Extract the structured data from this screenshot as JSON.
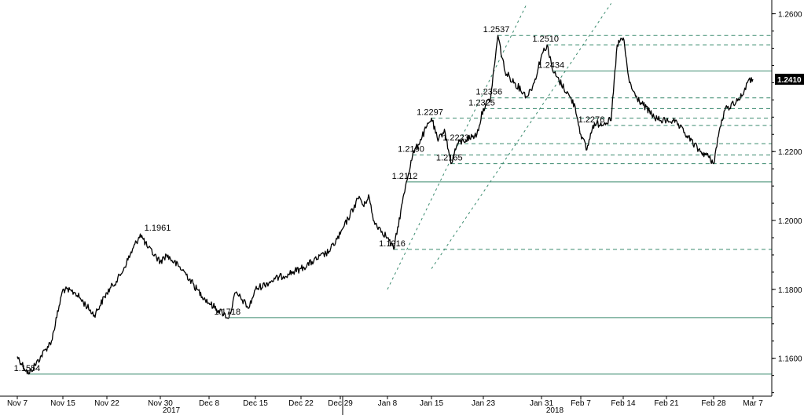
{
  "chart_data": {
    "type": "line",
    "title": "",
    "xlabel": "",
    "ylabel": "",
    "x_tick_labels": [
      "Nov 7",
      "Nov 15",
      "Nov 22",
      "Nov 30",
      "Dec 8",
      "Dec 15",
      "Dec 22",
      "Dec 29",
      "Jan 8",
      "Jan 15",
      "Jan 23",
      "Jan 31",
      "Feb 7",
      "Feb 14",
      "Feb 21",
      "Feb 28",
      "Mar 7"
    ],
    "year_labels": [
      "2017",
      "2018"
    ],
    "y_tick_labels": [
      "1.1600",
      "1.1800",
      "1.2000",
      "1.2200",
      "1.2600"
    ],
    "y_ticks": [
      1.16,
      1.18,
      1.2,
      1.22,
      1.26
    ],
    "ylim": [
      1.149,
      1.264
    ],
    "grid": false,
    "last_value": "1.2410",
    "series": [
      {
        "x": [
          "Nov 7",
          "Nov 9",
          "Nov 13",
          "Nov 15",
          "Nov 17",
          "Nov 20",
          "Nov 22",
          "Nov 24",
          "Nov 27",
          "Nov 28",
          "Nov 30",
          "Dec 1",
          "Dec 4",
          "Dec 6",
          "Dec 8",
          "Dec 11",
          "Dec 12",
          "Dec 13",
          "Dec 14",
          "Dec 15",
          "Dec 18",
          "Dec 20",
          "Dec 22",
          "Dec 27",
          "Dec 29",
          "Jan 2",
          "Jan 3",
          "Jan 4",
          "Jan 5",
          "Jan 8",
          "Jan 9",
          "Jan 11",
          "Jan 12",
          "Jan 15",
          "Jan 16",
          "Jan 17",
          "Jan 18",
          "Jan 19",
          "Jan 22",
          "Jan 23",
          "Jan 24",
          "Jan 25",
          "Jan 26",
          "Jan 29",
          "Jan 30",
          "Jan 31",
          "Feb 1",
          "Feb 2",
          "Feb 5",
          "Feb 6",
          "Feb 7",
          "Feb 8",
          "Feb 9",
          "Feb 12",
          "Feb 13",
          "Feb 14",
          "Feb 15",
          "Feb 16",
          "Feb 19",
          "Feb 20",
          "Feb 21",
          "Feb 22",
          "Feb 23",
          "Feb 26",
          "Feb 27",
          "Feb 28",
          "Mar 1",
          "Mar 2",
          "Mar 5",
          "Mar 6",
          "Mar 7"
        ],
        "values": [
          1.1605,
          1.1554,
          1.165,
          1.18,
          1.179,
          1.1725,
          1.179,
          1.184,
          1.1961,
          1.1925,
          1.188,
          1.19,
          1.185,
          1.18,
          1.176,
          1.1718,
          1.179,
          1.177,
          1.1745,
          1.18,
          1.183,
          1.1845,
          1.186,
          1.191,
          1.196,
          1.207,
          1.204,
          1.2075,
          1.2,
          1.195,
          1.1916,
          1.2112,
          1.219,
          1.2297,
          1.223,
          1.2265,
          1.2165,
          1.2223,
          1.225,
          1.2325,
          1.2356,
          1.2537,
          1.243,
          1.236,
          1.24,
          1.248,
          1.251,
          1.2434,
          1.236,
          1.233,
          1.225,
          1.2205,
          1.2276,
          1.229,
          1.251,
          1.253,
          1.24,
          1.236,
          1.23,
          1.229,
          1.229,
          1.229,
          1.227,
          1.22,
          1.219,
          1.2165,
          1.226,
          1.232,
          1.236,
          1.24,
          1.241
        ]
      }
    ],
    "horizontal_levels": [
      {
        "value": 1.2537,
        "style": "dashed",
        "label": "1.2537"
      },
      {
        "value": 1.251,
        "style": "dashed",
        "label": "1.2510"
      },
      {
        "value": 1.2434,
        "style": "solid",
        "label": "1.2434"
      },
      {
        "value": 1.2356,
        "style": "dashed",
        "label": "1.2356"
      },
      {
        "value": 1.2325,
        "style": "dashed",
        "label": "1.2325"
      },
      {
        "value": 1.2297,
        "style": "dashed",
        "label": "1.2297"
      },
      {
        "value": 1.2276,
        "style": "dashed",
        "label": "1.2276"
      },
      {
        "value": 1.2223,
        "style": "dashed",
        "label": "1.2223"
      },
      {
        "value": 1.219,
        "style": "dashed",
        "label": "1.2190"
      },
      {
        "value": 1.2165,
        "style": "dashed",
        "label": "1.2165"
      },
      {
        "value": 1.2112,
        "style": "solid",
        "label": "1.2112"
      },
      {
        "value": 1.1916,
        "style": "dashed",
        "label": "1.1916"
      },
      {
        "value": 1.1718,
        "style": "solid",
        "label": "1.1718"
      },
      {
        "value": 1.1554,
        "style": "solid",
        "label": "1.1554"
      }
    ],
    "other_annotations": [
      {
        "label": "1.1961",
        "x": "Nov 27",
        "value": 1.1961
      }
    ],
    "channel_lines": [
      {
        "from": {
          "x": "Jan 8",
          "value": 1.18
        },
        "to": {
          "x": "Jan 29",
          "value": 1.263
        }
      },
      {
        "from": {
          "x": "Jan 15",
          "value": 1.186
        },
        "to": {
          "x": "Feb 12",
          "value": 1.263
        }
      }
    ],
    "colors": {
      "line": "#000000",
      "levels": "#3a8a6e"
    }
  }
}
